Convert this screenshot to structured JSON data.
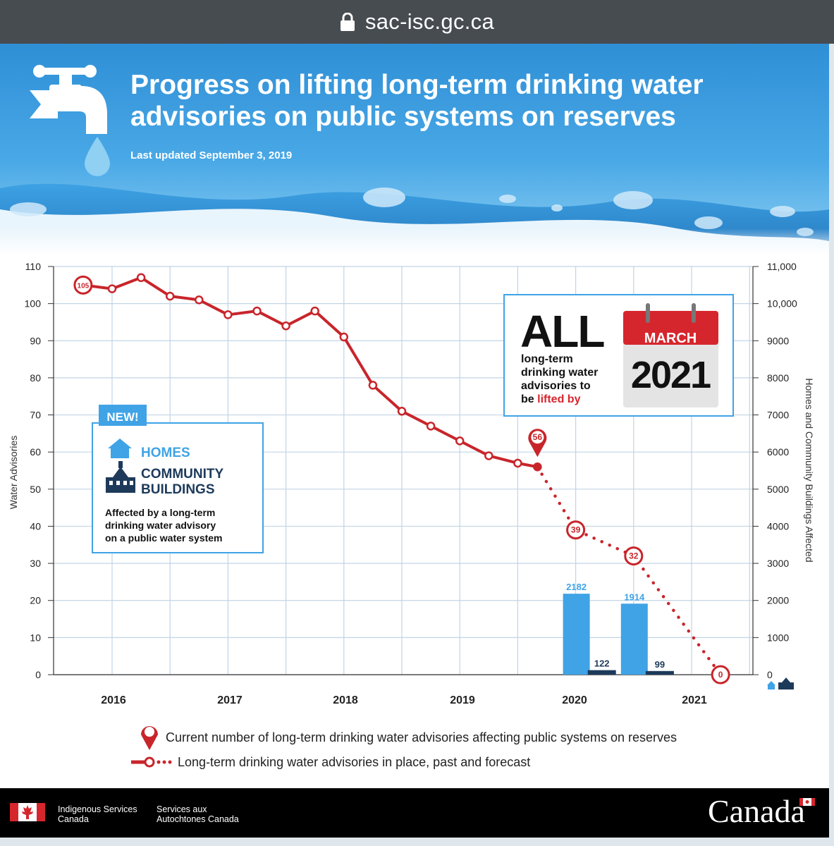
{
  "browser": {
    "url": "sac-isc.gc.ca"
  },
  "header": {
    "title_line1": "Progress on lifting long-term drinking water",
    "title_line2": "advisories on public systems on reserves",
    "updated": "Last updated September 3, 2019"
  },
  "chart_data": {
    "type": "line",
    "y_left": {
      "label": "Water Advisories",
      "range": [
        0,
        110
      ],
      "ticks": [
        "110",
        "100",
        "90",
        "80",
        "70",
        "60",
        "50",
        "40",
        "30",
        "20",
        "10",
        "0"
      ]
    },
    "y_right": {
      "label": "Homes and Community Buildings Affected",
      "range": [
        0,
        11000
      ],
      "ticks": [
        "11,000",
        "10,000",
        "9000",
        "8000",
        "7000",
        "6000",
        "5000",
        "4000",
        "3000",
        "2000",
        "1000",
        "0"
      ]
    },
    "x_labels": [
      "2016",
      "2017",
      "2018",
      "2019",
      "2020",
      "2021"
    ],
    "series_past": [
      {
        "x": 2015.75,
        "y": 105
      },
      {
        "x": 2016.0,
        "y": 104
      },
      {
        "x": 2016.25,
        "y": 107
      },
      {
        "x": 2016.5,
        "y": 102
      },
      {
        "x": 2016.75,
        "y": 101
      },
      {
        "x": 2017.0,
        "y": 97
      },
      {
        "x": 2017.25,
        "y": 98
      },
      {
        "x": 2017.5,
        "y": 94
      },
      {
        "x": 2017.75,
        "y": 98
      },
      {
        "x": 2018.0,
        "y": 91
      },
      {
        "x": 2018.25,
        "y": 78
      },
      {
        "x": 2018.5,
        "y": 71
      },
      {
        "x": 2018.75,
        "y": 67
      },
      {
        "x": 2019.0,
        "y": 63
      },
      {
        "x": 2019.25,
        "y": 59
      },
      {
        "x": 2019.5,
        "y": 57
      },
      {
        "x": 2019.67,
        "y": 56
      }
    ],
    "series_forecast": [
      {
        "x": 2019.67,
        "y": 56
      },
      {
        "x": 2020.0,
        "y": 39
      },
      {
        "x": 2020.5,
        "y": 32
      },
      {
        "x": 2021.25,
        "y": 0
      }
    ],
    "point_labels": [
      {
        "x": 2015.75,
        "y": 105,
        "text": "105"
      },
      {
        "x": 2020.0,
        "y": 39,
        "text": "39"
      },
      {
        "x": 2020.5,
        "y": 32,
        "text": "32"
      },
      {
        "x": 2021.25,
        "y": 0,
        "text": "0"
      }
    ],
    "current_marker": {
      "x": 2019.67,
      "y": 56,
      "text": "56"
    },
    "bars": [
      {
        "x": 2020.0,
        "type": "homes",
        "value": 2182,
        "label": "2182"
      },
      {
        "x": 2020.25,
        "type": "community",
        "value": 122,
        "label": "122"
      },
      {
        "x": 2020.5,
        "type": "homes",
        "value": 1914,
        "label": "1914"
      },
      {
        "x": 2020.75,
        "type": "community",
        "value": 99,
        "label": "99"
      }
    ],
    "colors": {
      "line": "#c8252b",
      "homes": "#3fa3e6",
      "community": "#1d3a5a",
      "grid": "#c2d4e5"
    },
    "grid": true
  },
  "callout_all": {
    "big": "ALL",
    "line1": "long-term",
    "line2": "drinking water",
    "line3": "advisories to",
    "line4_a": "be ",
    "line4_b": "lifted by"
  },
  "calendar": {
    "month": "MARCH",
    "year": "2021"
  },
  "callout_new": {
    "badge": "NEW!",
    "homes": "HOMES",
    "community_1": "COMMUNITY",
    "community_2": "BUILDINGS",
    "desc1": "Affected by a long-term",
    "desc2": "drinking water advisory",
    "desc3": "on a public water system"
  },
  "legend": {
    "current": "Current number of long-term drinking water advisories affecting public systems on reserves",
    "forecast": "Long-term drinking water advisories in place, past and forecast"
  },
  "footer": {
    "dept_en_1": "Indigenous Services",
    "dept_en_2": "Canada",
    "dept_fr_1": "Services aux",
    "dept_fr_2": "Autochtones Canada",
    "wordmark": "Canada"
  }
}
